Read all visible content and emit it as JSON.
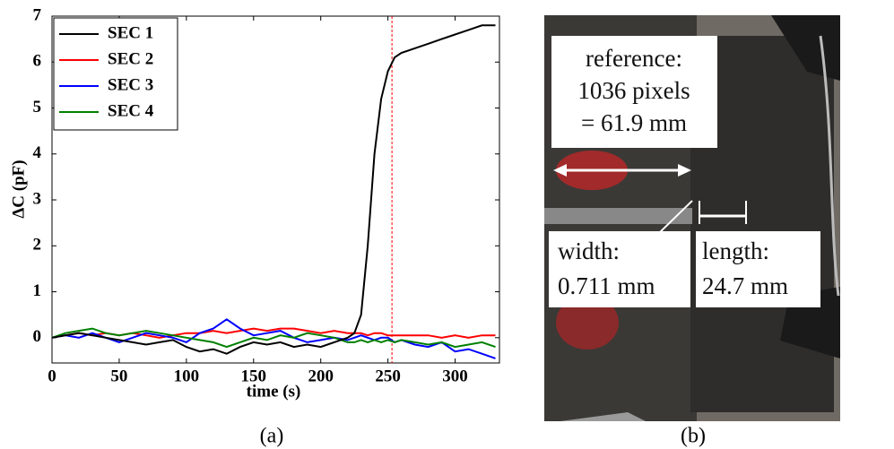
{
  "chart_data": {
    "type": "line",
    "x_label": "time (s)",
    "y_label": "ΔC (pF)",
    "x": [
      0,
      10,
      20,
      30,
      40,
      50,
      60,
      70,
      80,
      90,
      100,
      110,
      120,
      130,
      140,
      150,
      160,
      170,
      180,
      190,
      200,
      210,
      220,
      225,
      230,
      235,
      240,
      245,
      250,
      255,
      260,
      270,
      280,
      290,
      300,
      310,
      320,
      330
    ],
    "series": [
      {
        "name": "SEC 1",
        "color": "#000000",
        "values": [
          0,
          0.05,
          0.1,
          0.05,
          0,
          -0.05,
          -0.1,
          -0.15,
          -0.1,
          -0.05,
          -0.2,
          -0.3,
          -0.25,
          -0.35,
          -0.2,
          -0.1,
          -0.15,
          -0.1,
          -0.2,
          -0.15,
          -0.2,
          -0.1,
          0,
          0.1,
          0.5,
          2,
          4,
          5.2,
          5.8,
          6.1,
          6.2,
          6.3,
          6.4,
          6.5,
          6.6,
          6.7,
          6.8,
          6.8
        ]
      },
      {
        "name": "SEC 2",
        "color": "#ff0000",
        "values": [
          0,
          0.05,
          0.1,
          0.05,
          0.1,
          0.05,
          0.1,
          0.05,
          0,
          0.05,
          0.1,
          0.1,
          0.15,
          0.1,
          0.15,
          0.2,
          0.15,
          0.2,
          0.2,
          0.15,
          0.1,
          0.15,
          0.1,
          0.1,
          0.1,
          0.05,
          0.1,
          0.1,
          0.05,
          0.05,
          0.05,
          0.05,
          0.05,
          0,
          0.05,
          0,
          0.05,
          0.05
        ]
      },
      {
        "name": "SEC 3",
        "color": "#0000ff",
        "values": [
          0,
          0.05,
          0,
          0.1,
          0,
          -0.1,
          0,
          0.1,
          0.05,
          0,
          -0.1,
          0.1,
          0.2,
          0.4,
          0.2,
          0.05,
          0.1,
          0.15,
          0,
          -0.1,
          -0.05,
          0,
          -0.05,
          0,
          0.05,
          0,
          -0.05,
          0,
          0,
          -0.1,
          -0.05,
          -0.15,
          -0.2,
          -0.1,
          -0.3,
          -0.25,
          -0.35,
          -0.45
        ]
      },
      {
        "name": "SEC 4",
        "color": "#008000",
        "values": [
          0,
          0.1,
          0.15,
          0.2,
          0.1,
          0.05,
          0.1,
          0.15,
          0.1,
          0.05,
          0,
          -0.05,
          -0.1,
          -0.2,
          -0.1,
          0,
          -0.05,
          0.05,
          0,
          0.1,
          0.05,
          0,
          -0.1,
          -0.1,
          -0.05,
          -0.1,
          -0.05,
          -0.1,
          -0.05,
          -0.1,
          -0.05,
          -0.1,
          -0.15,
          -0.1,
          -0.2,
          -0.15,
          -0.1,
          -0.2
        ]
      }
    ],
    "xlim": [
      0,
      333
    ],
    "xticks": [
      0,
      50,
      100,
      150,
      200,
      250,
      300
    ],
    "ylim": [
      -0.55,
      7
    ],
    "yticks": [
      0,
      1,
      2,
      3,
      4,
      5,
      6,
      7
    ],
    "vline": {
      "value": 253,
      "color": "#ff0000"
    },
    "legend": "upper left",
    "caption": "(a)"
  },
  "photo": {
    "reference": [
      "reference:",
      "1036 pixels",
      "= 61.9 mm"
    ],
    "width": [
      "width:",
      "0.711 mm"
    ],
    "length": [
      "length:",
      "24.7 mm"
    ],
    "caption": "(b)"
  }
}
